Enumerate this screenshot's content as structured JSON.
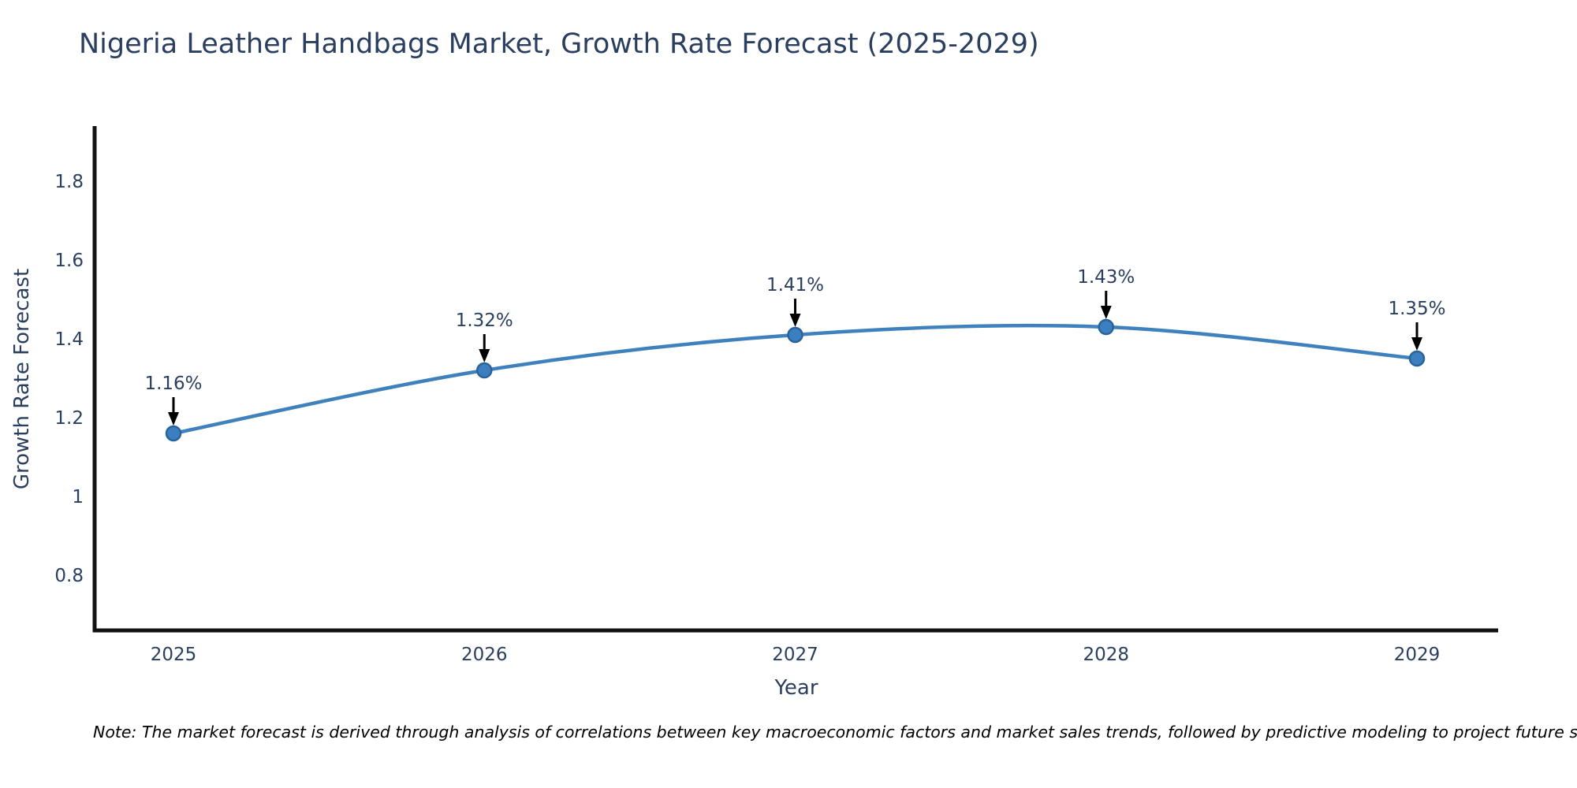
{
  "chart_data": {
    "type": "line",
    "title": "Nigeria Leather Handbags Market, Growth Rate Forecast (2025-2029)",
    "x": [
      "2025",
      "2026",
      "2027",
      "2028",
      "2029"
    ],
    "y": [
      1.16,
      1.32,
      1.41,
      1.43,
      1.35
    ],
    "point_labels": [
      "1.16%",
      "1.32%",
      "1.41%",
      "1.43%",
      "1.35%"
    ],
    "xlabel": "Year",
    "ylabel": "Growth Rate Forecast",
    "yticks": [
      0.8,
      1,
      1.2,
      1.4,
      1.6,
      1.8
    ],
    "ytick_labels": [
      "0.8",
      "1",
      "1.2",
      "1.4",
      "1.6",
      "1.8"
    ],
    "ylim": [
      0.66,
      1.94
    ],
    "grid": false,
    "legend": "none",
    "line_shape": "spline",
    "note": "Note: The market forecast is derived through analysis of correlations between key macroeconomic factors and market sales trends, followed by predictive modeling to project future sales",
    "colors": {
      "line": "#3f81bd",
      "marker_fill": "#3b7fc0",
      "marker_edge": "#2a6399",
      "annotation_text": "#2a3f5f",
      "arrow": "#000000",
      "axis_line": "#111111",
      "tick_text": "#2a3f5f",
      "title_text": "#2a3f5f",
      "note_text": "#000000",
      "background": "#ffffff"
    }
  }
}
